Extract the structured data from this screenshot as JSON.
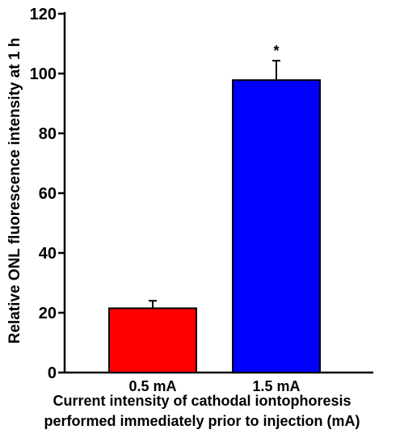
{
  "chart_data": {
    "type": "bar",
    "categories": [
      "0.5 mA",
      "1.5 mA"
    ],
    "values": [
      21.5,
      97.8
    ],
    "errors": [
      2.5,
      6.5
    ],
    "colors": [
      "#ff0000",
      "#0000ff"
    ],
    "annotations": [
      "",
      "*"
    ],
    "xlabel_line1": "Current intensity of cathodal iontophoresis",
    "xlabel_line2": "performed immediately prior to injection (mA)",
    "ylabel": "Relative ONL fluorescence intensity at 1 h",
    "ylim": [
      0,
      120
    ],
    "yticks": [
      0,
      20,
      40,
      60,
      80,
      100,
      120
    ],
    "grid": false
  }
}
